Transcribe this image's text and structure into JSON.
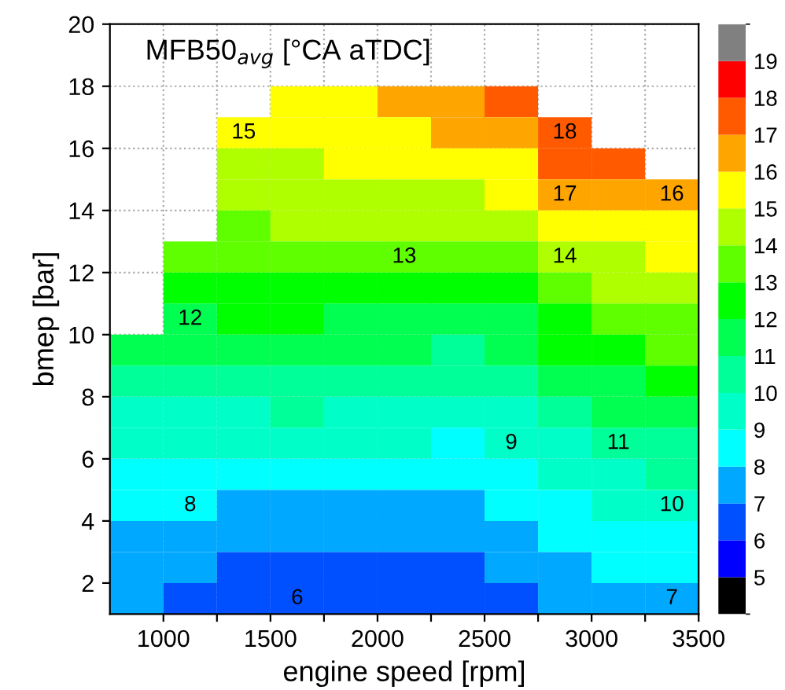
{
  "chart_data": {
    "type": "heatmap",
    "title": "MFB50$_{avg}$ [°CA aTDC]",
    "xlabel": "engine speed [rpm]",
    "ylabel": "bmep [bar]",
    "xlim": [
      750,
      3500
    ],
    "ylim": [
      1,
      20
    ],
    "xticks": [
      1000,
      {
        "value": 1250,
        "label": null
      },
      1500,
      {
        "value": 1750,
        "label": null
      },
      2000,
      {
        "value": 2250,
        "label": null
      },
      2500,
      {
        "value": 2750,
        "label": null
      },
      3000,
      {
        "value": 3250,
        "label": null
      },
      3500
    ],
    "yticks": [
      2,
      4,
      6,
      8,
      10,
      12,
      14,
      16,
      18,
      20
    ],
    "clim": [
      4,
      20
    ],
    "cticks": [
      5,
      6,
      7,
      8,
      9,
      10,
      11,
      12,
      13,
      14,
      15,
      16,
      17,
      18,
      19
    ],
    "colors": [
      "#000000",
      "#0000ff",
      "#0050ff",
      "#00a8ff",
      "#00ffff",
      "#00ffc8",
      "#00ff98",
      "#00ff50",
      "#00ff00",
      "#60ff00",
      "#b0ff00",
      "#ffff00",
      "#ffa500",
      "#ff5a00",
      "#ff0000",
      "#808080"
    ],
    "grid": true,
    "x": [
      875,
      1125,
      1375,
      1625,
      1875,
      2125,
      2375,
      2625,
      2875,
      3125,
      3375
    ],
    "y": [
      17.5,
      16.5,
      15.5,
      14.5,
      13.5,
      12.5,
      11.5,
      10.5,
      9.5,
      8.5,
      7.5,
      6.5,
      5.5,
      4.5,
      3.5,
      2.5,
      1.5
    ],
    "cells": [
      [
        null,
        null,
        null,
        15.5,
        15.5,
        16.5,
        16.5,
        17.5,
        null,
        null,
        null
      ],
      [
        null,
        null,
        15.5,
        15.5,
        15.5,
        15.5,
        16.5,
        16.5,
        17.5,
        null,
        null
      ],
      [
        null,
        null,
        14.5,
        14.5,
        15.5,
        15.5,
        15.5,
        15.5,
        17.5,
        17.5,
        null
      ],
      [
        null,
        null,
        14.5,
        14.5,
        14.5,
        14.5,
        14.5,
        15.5,
        16.5,
        16.5,
        16.5
      ],
      [
        null,
        null,
        13.5,
        14.5,
        14.5,
        14.5,
        14.5,
        14.5,
        15.5,
        15.5,
        15.5
      ],
      [
        null,
        13.5,
        13.5,
        13.5,
        13.5,
        13.5,
        13.5,
        13.5,
        14.5,
        14.5,
        15.5
      ],
      [
        null,
        12.5,
        12.5,
        12.5,
        12.5,
        12.5,
        12.5,
        12.5,
        13.5,
        14.5,
        14.5
      ],
      [
        null,
        11.5,
        12.5,
        12.5,
        11.5,
        11.5,
        11.5,
        11.5,
        12.5,
        13.5,
        13.5
      ],
      [
        11.5,
        11.5,
        11.5,
        11.5,
        11.5,
        11.5,
        10.5,
        11.5,
        12.5,
        12.5,
        13.5
      ],
      [
        10.5,
        10.5,
        10.5,
        10.5,
        10.5,
        10.5,
        10.5,
        10.5,
        11.5,
        11.5,
        12.5
      ],
      [
        9.5,
        9.5,
        9.5,
        10.5,
        9.5,
        9.5,
        9.5,
        9.5,
        10.5,
        11.5,
        11.5
      ],
      [
        9.5,
        9.5,
        9.5,
        9.5,
        9.5,
        9.5,
        8.5,
        9.5,
        9.5,
        10.5,
        10.5
      ],
      [
        8.5,
        8.5,
        8.5,
        8.5,
        8.5,
        8.5,
        8.5,
        8.5,
        9.5,
        9.5,
        10.5
      ],
      [
        8.5,
        8.5,
        7.5,
        7.5,
        7.5,
        7.5,
        7.5,
        8.5,
        8.5,
        9.5,
        9.5
      ],
      [
        7.5,
        7.5,
        7.5,
        7.5,
        7.5,
        7.5,
        7.5,
        7.5,
        8.5,
        8.5,
        8.5
      ],
      [
        7.5,
        7.5,
        6.5,
        6.5,
        6.5,
        6.5,
        6.5,
        7.5,
        7.5,
        8.5,
        8.5
      ],
      [
        7.5,
        6.5,
        6.5,
        6.5,
        6.5,
        6.5,
        6.5,
        6.5,
        7.5,
        7.5,
        7.5
      ]
    ],
    "cell_labels": [
      [
        null,
        null,
        null,
        null,
        null,
        null,
        null,
        null,
        null,
        null,
        null
      ],
      [
        null,
        null,
        "15",
        null,
        null,
        null,
        null,
        null,
        "18",
        null,
        null
      ],
      [
        null,
        null,
        null,
        null,
        null,
        null,
        null,
        null,
        null,
        null,
        null
      ],
      [
        null,
        null,
        null,
        null,
        null,
        null,
        null,
        null,
        "17",
        null,
        "16"
      ],
      [
        null,
        null,
        null,
        null,
        null,
        null,
        null,
        null,
        null,
        null,
        null
      ],
      [
        null,
        null,
        null,
        null,
        null,
        "13",
        null,
        null,
        "14",
        null,
        null
      ],
      [
        null,
        null,
        null,
        null,
        null,
        null,
        null,
        null,
        null,
        null,
        null
      ],
      [
        null,
        "12",
        null,
        null,
        null,
        null,
        null,
        null,
        null,
        null,
        null
      ],
      [
        null,
        null,
        null,
        null,
        null,
        null,
        null,
        null,
        null,
        null,
        null
      ],
      [
        null,
        null,
        null,
        null,
        null,
        null,
        null,
        null,
        null,
        null,
        null
      ],
      [
        null,
        null,
        null,
        null,
        null,
        null,
        null,
        null,
        null,
        null,
        null
      ],
      [
        null,
        null,
        null,
        null,
        null,
        null,
        null,
        "9",
        null,
        "11",
        null
      ],
      [
        null,
        null,
        null,
        null,
        null,
        null,
        null,
        null,
        null,
        null,
        null
      ],
      [
        null,
        "8",
        null,
        null,
        null,
        null,
        null,
        null,
        null,
        null,
        "10"
      ],
      [
        null,
        null,
        null,
        null,
        null,
        null,
        null,
        null,
        null,
        null,
        null
      ],
      [
        null,
        null,
        null,
        null,
        null,
        null,
        null,
        null,
        null,
        null,
        null
      ],
      [
        null,
        null,
        null,
        "6",
        null,
        null,
        null,
        null,
        null,
        null,
        "7"
      ]
    ]
  }
}
